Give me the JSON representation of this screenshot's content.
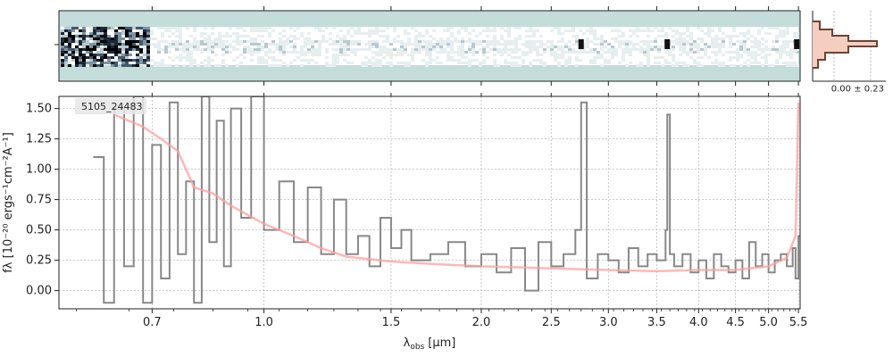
{
  "chart_data": [
    {
      "panel": "spectrum-2d",
      "type": "heatmap",
      "background_color": "#c4dcda",
      "emission_features_at_um": [
        2.75,
        3.62,
        5.47
      ]
    },
    {
      "panel": "spatial-profile",
      "type": "histogram",
      "annotation": "0.00 ± 0.23",
      "colors": {
        "fill": "#f6cec0",
        "line": "#6b4436"
      }
    },
    {
      "panel": "spectrum-1d",
      "type": "line",
      "object_label": "5105_24483",
      "xlabel": "λobs [μm]",
      "xlabel_main": "λ",
      "xlabel_sub": "obs",
      "xlabel_unit": "[μm]",
      "ylabel": "fλ [10⁻²⁰ ergs⁻¹cm⁻²A⁻¹]",
      "xscale": "log",
      "xlim": [
        0.52,
        5.53
      ],
      "ylim": [
        -0.15,
        1.6
      ],
      "x_ticks": [
        0.7,
        1.0,
        1.5,
        2.0,
        2.5,
        3.0,
        3.5,
        4.0,
        4.5,
        5.0,
        5.5
      ],
      "x_tick_labels": [
        "0.7",
        "1.0",
        "1.5",
        "2.0",
        "2.5",
        "3.0",
        "3.5",
        "4.0",
        "4.5",
        "5.0",
        "5.5"
      ],
      "y_ticks": [
        0.0,
        0.25,
        0.5,
        0.75,
        1.0,
        1.25,
        1.5
      ],
      "y_tick_labels": [
        "0.00",
        "0.25",
        "0.50",
        "0.75",
        "1.00",
        "1.25",
        "1.50"
      ],
      "grid": true,
      "series": [
        {
          "role": "flux",
          "style": "steps",
          "color": "#888888",
          "x": [
            0.58,
            0.6,
            0.62,
            0.64,
            0.66,
            0.68,
            0.7,
            0.72,
            0.74,
            0.76,
            0.78,
            0.8,
            0.82,
            0.84,
            0.86,
            0.88,
            0.9,
            0.93,
            0.96,
            1.0,
            1.05,
            1.1,
            1.15,
            1.2,
            1.25,
            1.3,
            1.35,
            1.4,
            1.45,
            1.5,
            1.55,
            1.6,
            1.7,
            1.8,
            1.9,
            2.0,
            2.1,
            2.2,
            2.3,
            2.4,
            2.5,
            2.6,
            2.7,
            2.75,
            2.8,
            2.9,
            3.0,
            3.1,
            3.2,
            3.3,
            3.4,
            3.5,
            3.6,
            3.62,
            3.65,
            3.7,
            3.8,
            3.9,
            4.0,
            4.1,
            4.2,
            4.3,
            4.4,
            4.5,
            4.6,
            4.7,
            4.8,
            4.9,
            5.0,
            5.1,
            5.2,
            5.3,
            5.4,
            5.45,
            5.5
          ],
          "y": [
            1.1,
            -0.1,
            1.5,
            0.2,
            1.6,
            -0.1,
            1.2,
            0.1,
            1.55,
            0.3,
            0.9,
            -0.1,
            1.6,
            0.4,
            1.4,
            0.2,
            1.5,
            0.6,
            1.6,
            0.5,
            0.9,
            0.4,
            0.85,
            0.3,
            0.75,
            0.3,
            0.45,
            0.2,
            0.6,
            0.35,
            0.5,
            0.25,
            0.3,
            0.4,
            0.2,
            0.3,
            0.15,
            0.35,
            0.0,
            0.4,
            0.2,
            0.3,
            0.5,
            1.55,
            0.1,
            0.3,
            0.25,
            0.15,
            0.35,
            0.2,
            0.3,
            0.25,
            0.5,
            1.45,
            0.3,
            0.2,
            0.3,
            0.15,
            0.25,
            0.1,
            0.3,
            0.2,
            0.15,
            0.25,
            0.1,
            0.4,
            0.2,
            0.3,
            0.15,
            0.25,
            0.3,
            0.2,
            0.35,
            0.1,
            0.45
          ]
        },
        {
          "role": "model",
          "style": "line",
          "color": "#ff9f9f",
          "x": [
            0.62,
            0.68,
            0.72,
            0.76,
            0.8,
            0.85,
            0.9,
            1.0,
            1.1,
            1.2,
            1.3,
            1.5,
            1.7,
            2.0,
            2.3,
            2.6,
            3.0,
            3.5,
            4.0,
            4.5,
            5.0,
            5.3,
            5.45,
            5.5
          ],
          "y": [
            1.45,
            1.35,
            1.25,
            1.15,
            0.85,
            0.8,
            0.7,
            0.55,
            0.45,
            0.35,
            0.28,
            0.24,
            0.22,
            0.2,
            0.19,
            0.18,
            0.17,
            0.16,
            0.17,
            0.17,
            0.2,
            0.27,
            0.45,
            1.55
          ]
        }
      ]
    }
  ]
}
